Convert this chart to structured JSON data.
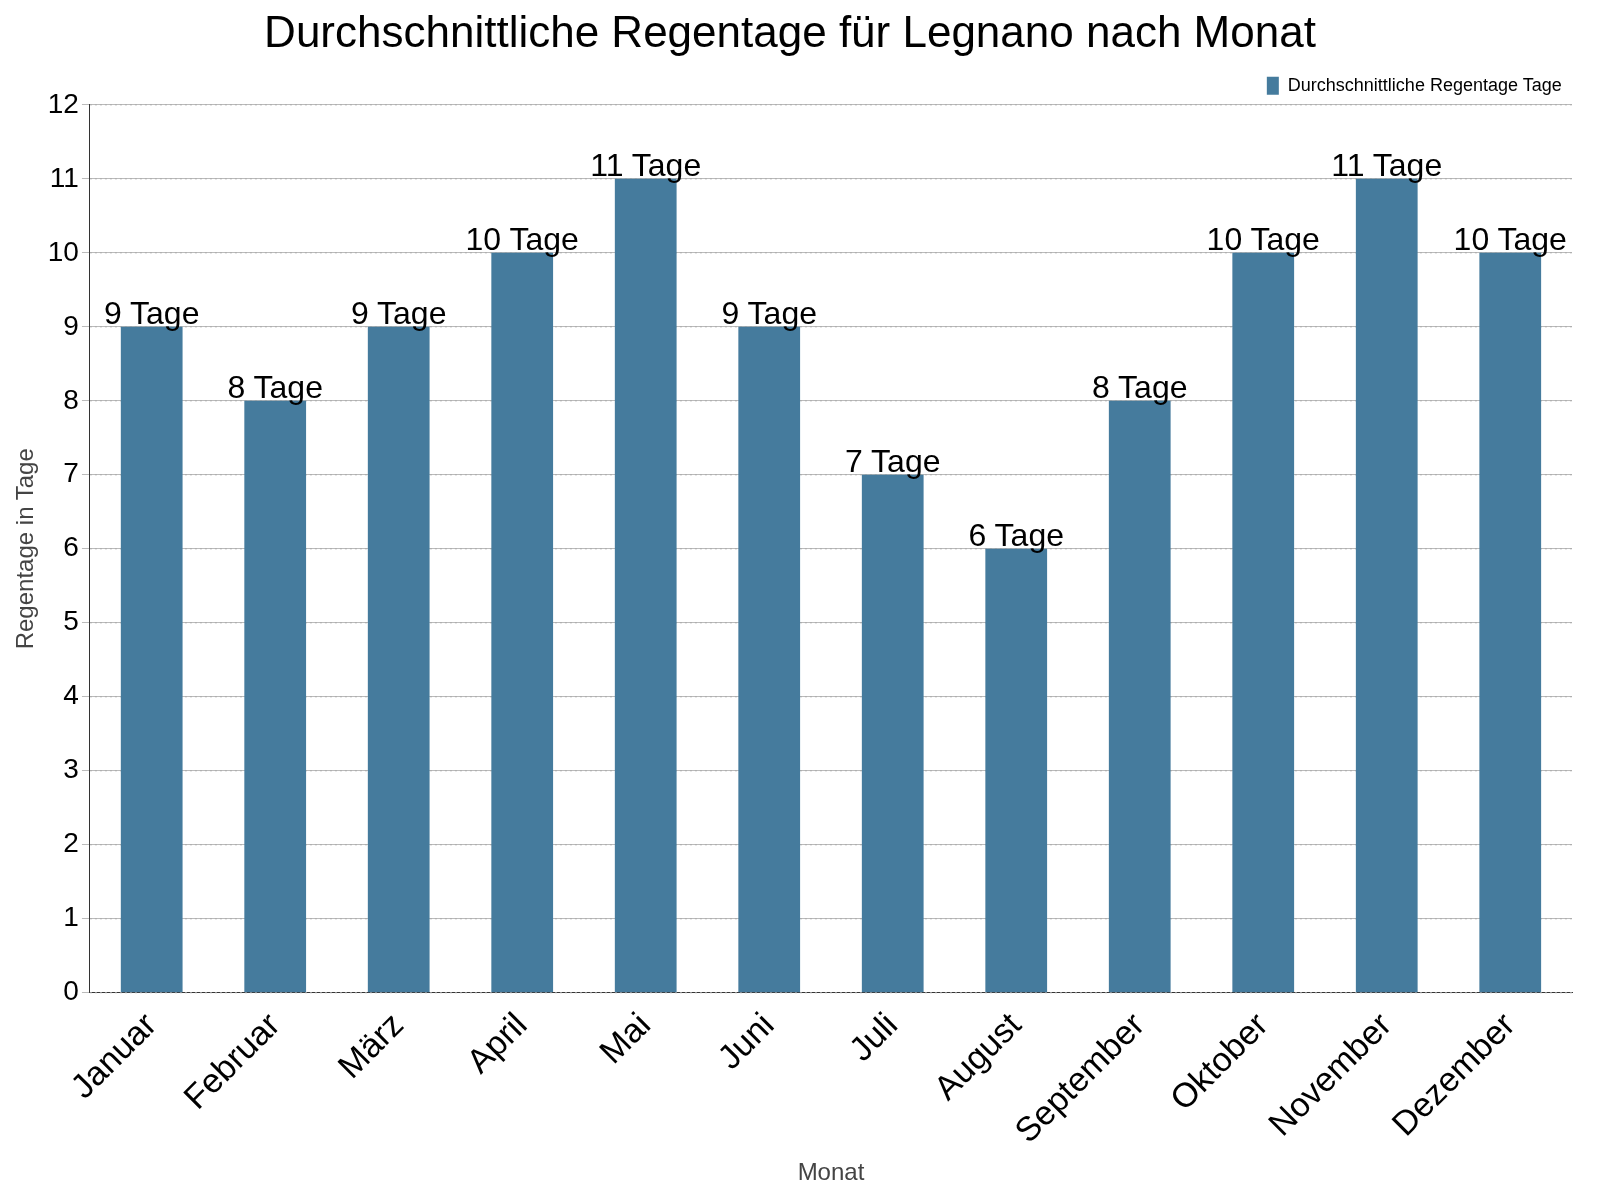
{
  "chart_data": {
    "type": "bar",
    "title": "Durchschnittliche Regentage für Legnano nach Monat",
    "xlabel": "Monat",
    "ylabel": "Regentage in Tage",
    "categories": [
      "Januar",
      "Februar",
      "März",
      "April",
      "Mai",
      "Juni",
      "Juli",
      "August",
      "September",
      "Oktober",
      "November",
      "Dezember"
    ],
    "series": [
      {
        "name": "Durchschnittliche Regentage Tage",
        "color": "#457b9d",
        "values": [
          9,
          8,
          9,
          10,
          11,
          9,
          7,
          6,
          8,
          10,
          11,
          10
        ]
      }
    ],
    "value_labels": [
      "9 Tage",
      "8 Tage",
      "9 Tage",
      "10 Tage",
      "11 Tage",
      "9 Tage",
      "7 Tage",
      "6 Tage",
      "8 Tage",
      "10 Tage",
      "11 Tage",
      "10 Tage"
    ],
    "ylim": [
      0,
      12
    ],
    "yticks": [
      0,
      1,
      2,
      3,
      4,
      5,
      6,
      7,
      8,
      9,
      10,
      11,
      12
    ],
    "grid": "y",
    "legend": "top right"
  }
}
